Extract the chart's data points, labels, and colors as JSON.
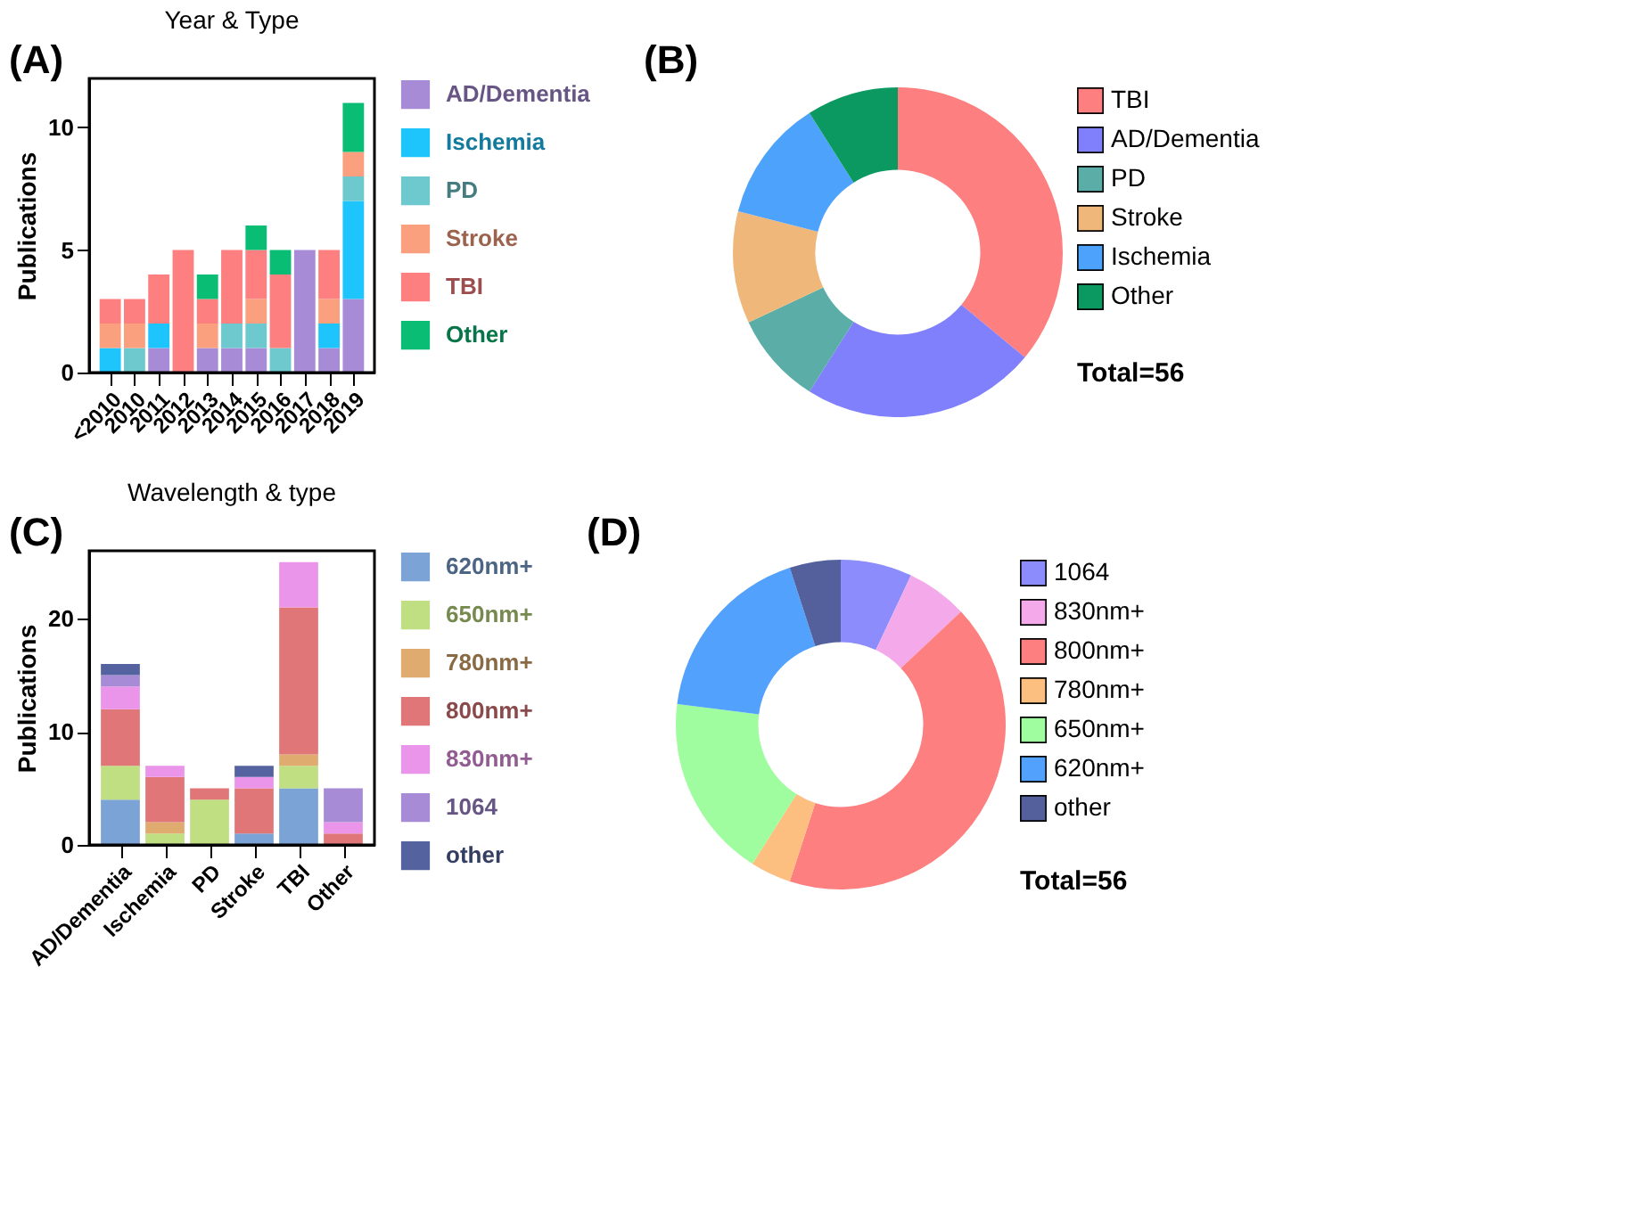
{
  "chart_data": [
    {
      "type": "bar",
      "title": "Year & Type",
      "ylabel": "Publications",
      "stacked": true,
      "legend": "right",
      "grid": false,
      "annotations": [
        "(A)"
      ],
      "categories": [
        "<2010",
        "2010",
        "2011",
        "2012",
        "2013",
        "2014",
        "2015",
        "2016",
        "2017",
        "2018",
        "2019"
      ],
      "ylim": [
        0,
        12
      ],
      "yticks": [
        0,
        5,
        10
      ],
      "series": [
        {
          "name": "AD/Dementia",
          "color": "#a78bd6",
          "values": [
            0,
            0,
            1,
            0,
            1,
            1,
            1,
            0,
            5,
            1,
            3
          ]
        },
        {
          "name": "Ischemia",
          "color": "#1ec5fc",
          "values": [
            1,
            0,
            1,
            0,
            0,
            0,
            0,
            0,
            0,
            1,
            4
          ]
        },
        {
          "name": "PD",
          "color": "#6ec9cf",
          "values": [
            0,
            1,
            0,
            0,
            0,
            1,
            1,
            1,
            0,
            0,
            1
          ]
        },
        {
          "name": "Stroke",
          "color": "#fba07e",
          "values": [
            1,
            1,
            0,
            0,
            1,
            0,
            1,
            0,
            0,
            1,
            1
          ]
        },
        {
          "name": "TBI",
          "color": "#fd7f7f",
          "values": [
            1,
            1,
            2,
            5,
            1,
            3,
            2,
            3,
            0,
            2,
            0
          ]
        },
        {
          "name": "Other",
          "color": "#0abd74",
          "values": [
            0,
            0,
            0,
            0,
            1,
            0,
            1,
            1,
            0,
            0,
            2
          ]
        }
      ]
    },
    {
      "type": "donut",
      "legend": "right",
      "annotations": [
        "(B)",
        "Total=56"
      ],
      "categories": [
        "TBI",
        "AD/Dementia",
        "PD",
        "Stroke",
        "Ischemia",
        "Other"
      ],
      "values": [
        36,
        23,
        9,
        11,
        12,
        9
      ],
      "colors": [
        "#fd7f7f",
        "#8080fd",
        "#5aaea7",
        "#f0b77b",
        "#4da3fc",
        "#0c9961"
      ]
    },
    {
      "type": "bar",
      "title": "Wavelength & type",
      "ylabel": "Publications",
      "stacked": true,
      "legend": "right",
      "grid": false,
      "annotations": [
        "(C)"
      ],
      "categories": [
        "AD/Dementia",
        "Ischemia",
        "PD",
        "Stroke",
        "TBI",
        "Other"
      ],
      "ylim": [
        0,
        26
      ],
      "yticks": [
        0,
        10,
        20
      ],
      "series": [
        {
          "name": "620nm+",
          "color": "#7ba3d6",
          "values": [
            4,
            0,
            0,
            1,
            5,
            0
          ]
        },
        {
          "name": "650nm+",
          "color": "#bfdf82",
          "values": [
            3,
            1,
            4,
            0,
            2,
            0
          ]
        },
        {
          "name": "780nm+",
          "color": "#dfab6f",
          "values": [
            0,
            1,
            0,
            0,
            1,
            0
          ]
        },
        {
          "name": "800nm+",
          "color": "#e07678",
          "values": [
            5,
            4,
            1,
            4,
            13,
            1
          ]
        },
        {
          "name": "830nm+",
          "color": "#ea95ea",
          "values": [
            2,
            1,
            0,
            1,
            4,
            1
          ]
        },
        {
          "name": "1064",
          "color": "#a78bd6",
          "values": [
            1,
            0,
            0,
            0,
            0,
            3
          ]
        },
        {
          "name": "other",
          "color": "#54639f",
          "values": [
            1,
            0,
            0,
            1,
            0,
            0
          ]
        }
      ]
    },
    {
      "type": "donut",
      "legend": "right",
      "annotations": [
        "(D)",
        "Total=56"
      ],
      "categories": [
        "1064",
        "830nm+",
        "800nm+",
        "780nm+",
        "650nm+",
        "620nm+",
        "other"
      ],
      "values": [
        7,
        6,
        42,
        4,
        18,
        18,
        5
      ],
      "colors": [
        "#8c8cfd",
        "#f4aaea",
        "#fd7f7f",
        "#fdbf7f",
        "#9ffd9f",
        "#52a2fd",
        "#53609c"
      ]
    }
  ]
}
